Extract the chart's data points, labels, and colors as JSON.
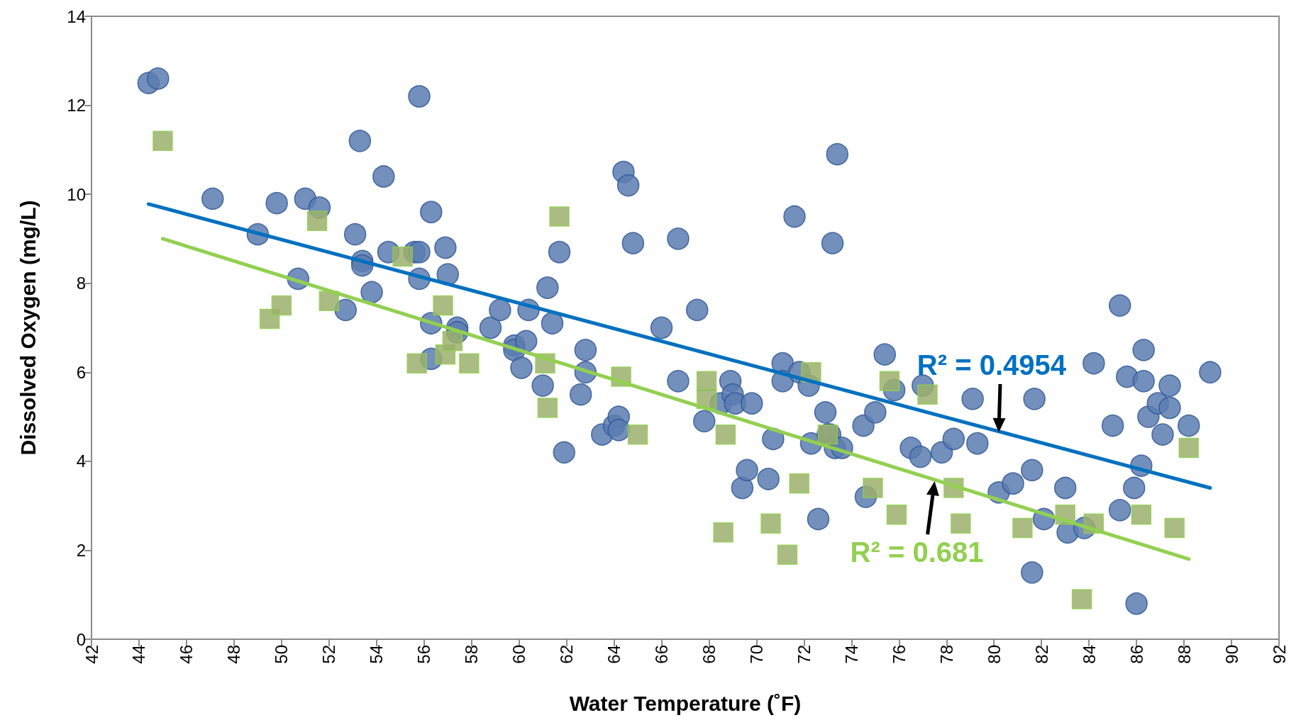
{
  "chart_data": {
    "type": "scatter",
    "xlabel": "Water Temperature (˚F)",
    "ylabel": "Dissolved Oxygen (mg/L)",
    "xlim": [
      42,
      92
    ],
    "xticks": [
      42,
      44,
      46,
      48,
      50,
      52,
      54,
      56,
      58,
      60,
      62,
      64,
      66,
      68,
      70,
      72,
      74,
      76,
      78,
      80,
      82,
      84,
      86,
      88,
      90,
      92
    ],
    "ylim": [
      0,
      14
    ],
    "yticks": [
      0,
      2,
      4,
      6,
      8,
      10,
      12,
      14
    ],
    "grid": false,
    "series": [
      {
        "marker": "circle",
        "color": "#5b7db0",
        "x": [
          44.4,
          44.8,
          47.1,
          49,
          49.8,
          50.7,
          51,
          51.6,
          52.7,
          53.1,
          53.3,
          53.4,
          53.4,
          53.8,
          54.3,
          54.5,
          55.6,
          55.8,
          55.8,
          55.8,
          56.3,
          56.3,
          56.3,
          56.9,
          57,
          57.4,
          57.4,
          58.8,
          59.2,
          59.8,
          59.8,
          60.1,
          60.3,
          60.4,
          61,
          61.2,
          61.4,
          61.7,
          61.9,
          62.6,
          62.8,
          62.8,
          63.5,
          64,
          64.2,
          64.2,
          64.4,
          64.6,
          64.8,
          66,
          66.7,
          66.7,
          67.5,
          67.8,
          68.5,
          68.9,
          69,
          69.1,
          69.4,
          69.6,
          69.8,
          70.5,
          70.7,
          71.1,
          71.1,
          71.6,
          71.8,
          72.2,
          72.3,
          72.6,
          72.9,
          73,
          73.1,
          73.2,
          73.3,
          73.4,
          73.6,
          74.5,
          74.6,
          75,
          75.4,
          75.8,
          76.5,
          76.9,
          77,
          77.8,
          78.3,
          79.1,
          79.3,
          80.2,
          80.8,
          81.6,
          81.6,
          81.7,
          82.1,
          83,
          83.1,
          83.8,
          84.2,
          85,
          85.3,
          85.3,
          85.6,
          85.9,
          86,
          86.2,
          86.3,
          86.3,
          86.5,
          86.9,
          87.1,
          87.4,
          87.4,
          88.2,
          89.1
        ],
        "values": [
          12.5,
          12.6,
          9.9,
          9.1,
          9.8,
          8.1,
          9.9,
          9.7,
          7.4,
          9.1,
          11.2,
          8.5,
          8.4,
          7.8,
          10.4,
          8.7,
          8.7,
          12.2,
          8.7,
          8.1,
          9.6,
          7.1,
          6.3,
          8.8,
          8.2,
          7.0,
          6.9,
          7.0,
          7.4,
          6.6,
          6.5,
          6.1,
          6.7,
          7.4,
          5.7,
          7.9,
          7.1,
          8.7,
          4.2,
          5.5,
          6.5,
          6.0,
          4.6,
          4.8,
          5.0,
          4.7,
          10.5,
          10.2,
          8.9,
          7.0,
          9.0,
          5.8,
          7.4,
          4.9,
          5.3,
          5.8,
          5.5,
          5.3,
          3.4,
          3.8,
          5.3,
          3.6,
          4.5,
          6.2,
          5.8,
          9.5,
          6.0,
          5.7,
          4.4,
          2.7,
          5.1,
          4.6,
          4.6,
          8.9,
          4.3,
          10.9,
          4.3,
          4.8,
          3.2,
          5.1,
          6.4,
          5.6,
          4.3,
          4.1,
          5.7,
          4.2,
          4.5,
          5.4,
          4.4,
          3.3,
          3.5,
          1.5,
          3.8,
          5.4,
          2.7,
          3.4,
          2.4,
          2.5,
          6.2,
          4.8,
          7.5,
          2.9,
          5.9,
          3.4,
          0.8,
          3.9,
          6.5,
          5.8,
          5.0,
          5.3,
          4.6,
          5.7,
          5.2,
          4.8,
          6.0
        ]
      },
      {
        "marker": "square",
        "color": "#9bb06c",
        "x": [
          45,
          49.5,
          50,
          51.5,
          52,
          55.1,
          55.7,
          56.8,
          56.9,
          57.2,
          57.9,
          61.1,
          61.2,
          61.7,
          64.3,
          65,
          67.9,
          67.9,
          68.7,
          68.6,
          70.6,
          71.3,
          71.8,
          72.3,
          73,
          74.9,
          75.6,
          75.9,
          77.2,
          78.3,
          78.6,
          81.2,
          83,
          83.7,
          84.2,
          86.2,
          87.6,
          88.2
        ],
        "values": [
          11.2,
          7.2,
          7.5,
          9.4,
          7.6,
          8.6,
          6.2,
          7.5,
          6.4,
          6.7,
          6.2,
          6.2,
          5.2,
          9.5,
          5.9,
          4.6,
          5.8,
          5.4,
          4.6,
          2.4,
          2.6,
          1.9,
          3.5,
          6.0,
          4.6,
          3.4,
          5.8,
          2.8,
          5.5,
          3.4,
          2.6,
          2.5,
          2.8,
          0.9,
          2.6,
          2.8,
          2.5,
          4.3
        ]
      },
      {
        "type": "line",
        "marker": "none",
        "line_style": "solid",
        "color": "#0070c0",
        "x": [
          44.4,
          89.1
        ],
        "values": [
          9.78,
          3.4
        ]
      },
      {
        "type": "line",
        "marker": "none",
        "line_style": "solid",
        "color": "#92d050",
        "x": [
          45,
          88.2
        ],
        "values": [
          9.0,
          1.8
        ]
      }
    ],
    "annotations": [
      {
        "text": "R² = 0.4954",
        "x": 80.2,
        "y": 4.65
      },
      {
        "text": "R² = 0.681",
        "x": 77.5,
        "y": 3.55
      }
    ]
  }
}
